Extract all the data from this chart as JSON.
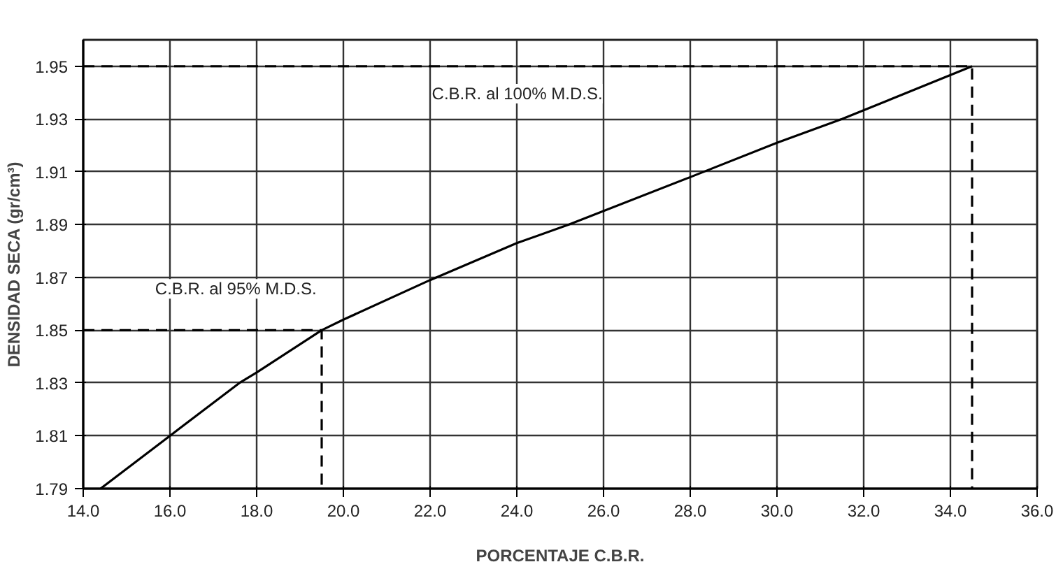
{
  "chart_data": {
    "type": "line",
    "xlabel": "PORCENTAJE C.B.R.",
    "ylabel": "DENSIDAD SECA (gr/cm³)",
    "xlim": [
      14.0,
      36.0
    ],
    "xticks": [
      {
        "value": 14,
        "label": "14.0"
      },
      {
        "value": 16,
        "label": "16.0"
      },
      {
        "value": 18,
        "label": "18.0"
      },
      {
        "value": 20,
        "label": "20.0"
      },
      {
        "value": 22,
        "label": "22.0"
      },
      {
        "value": 24,
        "label": "24.0"
      },
      {
        "value": 26,
        "label": "26.0"
      },
      {
        "value": 28,
        "label": "28.0"
      },
      {
        "value": 30,
        "label": "30.0"
      },
      {
        "value": 32,
        "label": "32.0"
      },
      {
        "value": 34,
        "label": "34.0"
      },
      {
        "value": 36,
        "label": "36.0"
      }
    ],
    "ylim": [
      1.79,
      1.96
    ],
    "yticks": [
      1.79,
      1.81,
      1.83,
      1.85,
      1.87,
      1.89,
      1.91,
      1.93,
      1.95
    ],
    "grid": true,
    "marker": "none",
    "series": [
      {
        "color": "#000000",
        "line_style": "solid",
        "x": [
          14.4,
          16.0,
          17.6,
          18.0,
          19.5,
          20.0,
          22.0,
          24.0,
          25.2,
          28.0,
          30.0,
          31.5,
          34.5
        ],
        "values": [
          1.79,
          1.81,
          1.83,
          1.834,
          1.85,
          1.854,
          1.869,
          1.883,
          1.89,
          1.908,
          1.921,
          1.93,
          1.95
        ]
      },
      {
        "color": "#000000",
        "line_style": "dashed",
        "x": [
          14.0,
          34.5,
          34.5
        ],
        "values": [
          1.95,
          1.95,
          1.79
        ]
      },
      {
        "color": "#000000",
        "line_style": "dashed",
        "x": [
          14.0,
          19.5,
          19.5
        ],
        "values": [
          1.85,
          1.85,
          1.79
        ]
      }
    ],
    "annotations": [
      "C.B.R. al 100% M.D.S.",
      "C.B.R. al 95% M.D.S."
    ]
  }
}
